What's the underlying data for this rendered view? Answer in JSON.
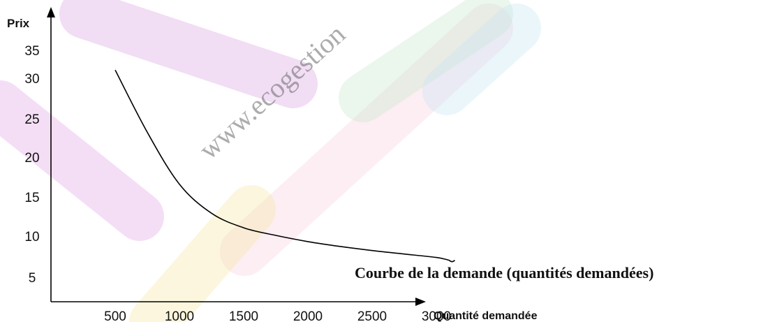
{
  "watermark": {
    "site": "www.ecogestion",
    "band_colors": [
      "#e8b7ea",
      "#d8a0e0",
      "#f6c8d8",
      "#f4e6a0",
      "#bfe6c7",
      "#bfe2f5",
      "#f4b8c8"
    ]
  },
  "chart_data": {
    "type": "line",
    "title": "",
    "xlabel": "Quantité demandée",
    "ylabel": "Prix",
    "x_ticks": [
      500,
      1000,
      1500,
      2000,
      2500,
      3000
    ],
    "y_ticks": [
      5,
      10,
      15,
      20,
      25,
      30,
      35
    ],
    "xlim": [
      0,
      3400
    ],
    "ylim": [
      0,
      38
    ],
    "grid": false,
    "series": [
      {
        "name": "Courbe de la demande (quantités demandées)",
        "color": "#000000",
        "x": [
          500,
          750,
          1000,
          1250,
          1500,
          1750,
          2000,
          2250,
          2500,
          2750,
          3000,
          3100
        ],
        "y": [
          33.5,
          24.5,
          17,
          12.8,
          10.7,
          9.6,
          8.7,
          8.0,
          7.4,
          6.9,
          6.4,
          6.0
        ]
      }
    ]
  }
}
